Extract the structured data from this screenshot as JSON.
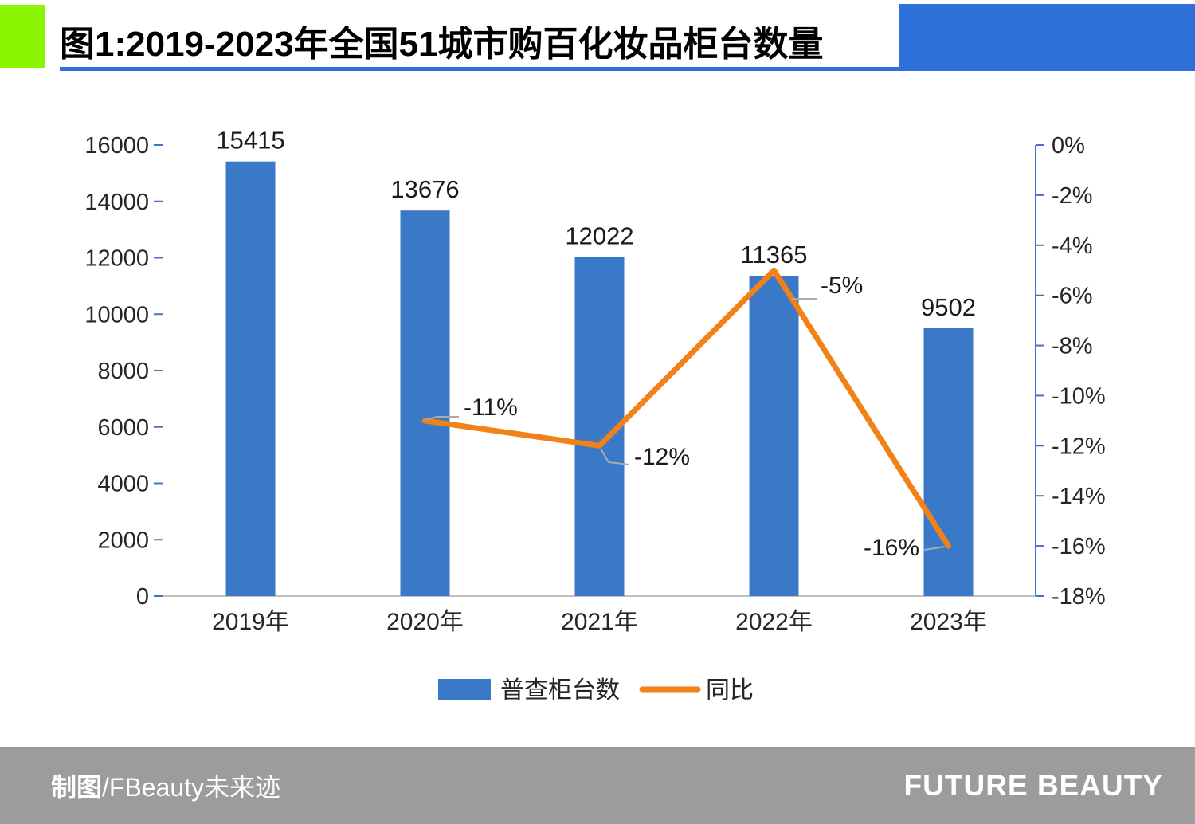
{
  "header": {
    "title": "图1:2019-2023年全国51城市购百化妆品柜台数量"
  },
  "footer": {
    "credit_bold": "制图",
    "credit_regular": "/FBeauty未来迹",
    "brand": "FUTURE BEAUTY"
  },
  "colors": {
    "bar": "#3A78C8",
    "line": "#F28217",
    "header_blue": "#2E6FD9",
    "header_green": "#8CF502",
    "footer_gray": "#9C9C9C",
    "axis_blue": "#4472C4",
    "leader_gray": "#AAAAAA",
    "baseline_gray": "#C0C0C0"
  },
  "chart_data": {
    "type": "bar",
    "title": "图1:2019-2023年全国51城市购百化妆品柜台数量",
    "categories": [
      "2019年",
      "2020年",
      "2021年",
      "2022年",
      "2023年"
    ],
    "series": [
      {
        "name": "普查柜台数",
        "type": "bar",
        "values": [
          15415,
          13676,
          12022,
          11365,
          9502
        ]
      },
      {
        "name": "同比",
        "type": "line",
        "values": [
          null,
          -11,
          -12,
          -5,
          -16
        ],
        "point_labels": [
          "",
          "-11%",
          "-12%",
          "-5%",
          "-16%"
        ]
      }
    ],
    "bar_labels": [
      "15415",
      "13676",
      "12022",
      "11365",
      "9502"
    ],
    "left_axis": {
      "min": 0,
      "max": 16000,
      "step": 2000
    },
    "right_axis": {
      "min": -18,
      "max": 0,
      "step": 2,
      "suffix": "%"
    },
    "legend": [
      "普查柜台数",
      "同比"
    ],
    "grid": false,
    "legend_position": "bottom"
  }
}
